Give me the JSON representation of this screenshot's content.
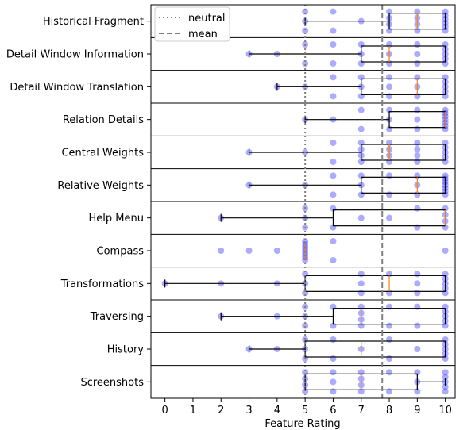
{
  "chart_data": {
    "type": "box",
    "xlabel": "Feature Rating",
    "xlim": [
      -0.5,
      10.35
    ],
    "xticks": [
      0,
      1,
      2,
      3,
      4,
      5,
      6,
      7,
      8,
      9,
      10
    ],
    "neutral": 5,
    "mean": 7.75,
    "legend": {
      "position": "top-left",
      "entries": [
        {
          "label": "neutral",
          "style": "dotted"
        },
        {
          "label": "mean",
          "style": "dashed"
        }
      ]
    },
    "colors": {
      "points": "#0000ff",
      "median": "#ff7f0e",
      "box": "#000000",
      "neutral": "#808080",
      "mean": "#808080"
    },
    "categories": [
      {
        "name": "Historical Fragment",
        "box": {
          "wlo": 5,
          "q1": 8,
          "med": 9,
          "q3": 10,
          "whi": 10
        },
        "points": [
          [
            5,
            3
          ],
          [
            6,
            2
          ],
          [
            7,
            1
          ],
          [
            8,
            4
          ],
          [
            9,
            4
          ],
          [
            10,
            6
          ]
        ]
      },
      {
        "name": "Detail Window Information",
        "box": {
          "wlo": 3,
          "q1": 7,
          "med": 8,
          "q3": 10,
          "whi": 10
        },
        "points": [
          [
            3,
            1
          ],
          [
            4,
            1
          ],
          [
            5,
            2
          ],
          [
            6,
            2
          ],
          [
            7,
            3
          ],
          [
            8,
            3
          ],
          [
            9,
            3
          ],
          [
            10,
            5
          ]
        ]
      },
      {
        "name": "Detail Window Translation",
        "box": {
          "wlo": 4,
          "q1": 7,
          "med": 9,
          "q3": 10,
          "whi": 10
        },
        "points": [
          [
            4,
            1
          ],
          [
            5,
            1
          ],
          [
            6,
            2
          ],
          [
            7,
            3
          ],
          [
            8,
            3
          ],
          [
            9,
            3
          ],
          [
            10,
            5
          ]
        ]
      },
      {
        "name": "Relation Details",
        "box": {
          "wlo": 5,
          "q1": 8,
          "med": 10,
          "q3": 10,
          "whi": 10
        },
        "points": [
          [
            5,
            1
          ],
          [
            6,
            1
          ],
          [
            7,
            2
          ],
          [
            8,
            3
          ],
          [
            9,
            3
          ],
          [
            10,
            7
          ]
        ]
      },
      {
        "name": "Central Weights",
        "box": {
          "wlo": 3,
          "q1": 7,
          "med": 8,
          "q3": 10,
          "whi": 10
        },
        "points": [
          [
            3,
            1
          ],
          [
            5,
            1
          ],
          [
            6,
            2
          ],
          [
            7,
            4
          ],
          [
            8,
            4
          ],
          [
            9,
            4
          ],
          [
            10,
            5
          ]
        ]
      },
      {
        "name": "Relative Weights",
        "box": {
          "wlo": 3,
          "q1": 7,
          "med": 9,
          "q3": 10,
          "whi": 10
        },
        "points": [
          [
            3,
            1
          ],
          [
            5,
            1
          ],
          [
            6,
            2
          ],
          [
            7,
            3
          ],
          [
            8,
            2
          ],
          [
            9,
            3
          ],
          [
            10,
            7
          ]
        ]
      },
      {
        "name": "Help Menu",
        "box": {
          "wlo": 2,
          "q1": 6,
          "med": 10,
          "q3": 10,
          "whi": 10
        },
        "points": [
          [
            2,
            1
          ],
          [
            5,
            3
          ],
          [
            6,
            2
          ],
          [
            7,
            1
          ],
          [
            8,
            1
          ],
          [
            9,
            2
          ],
          [
            10,
            4
          ]
        ]
      },
      {
        "name": "Compass",
        "box": {
          "wlo": 5,
          "q1": 5,
          "med": 5,
          "q3": 5,
          "whi": 5
        },
        "points": [
          [
            2,
            1
          ],
          [
            3,
            1
          ],
          [
            4,
            1
          ],
          [
            5,
            7
          ],
          [
            6,
            2
          ],
          [
            10,
            1
          ]
        ]
      },
      {
        "name": "Transformations",
        "box": {
          "wlo": 0,
          "q1": 5,
          "med": 8,
          "q3": 10,
          "whi": 10
        },
        "points": [
          [
            0,
            1
          ],
          [
            2,
            1
          ],
          [
            4,
            1
          ],
          [
            5,
            3
          ],
          [
            7,
            3
          ],
          [
            8,
            2
          ],
          [
            9,
            3
          ],
          [
            10,
            5
          ]
        ]
      },
      {
        "name": "Traversing",
        "box": {
          "wlo": 2,
          "q1": 6,
          "med": 7,
          "q3": 10,
          "whi": 10
        },
        "points": [
          [
            2,
            1
          ],
          [
            4,
            1
          ],
          [
            5,
            3
          ],
          [
            6,
            2
          ],
          [
            7,
            4
          ],
          [
            8,
            2
          ],
          [
            9,
            2
          ],
          [
            10,
            5
          ]
        ]
      },
      {
        "name": "History",
        "box": {
          "wlo": 3,
          "q1": 5,
          "med": 7,
          "q3": 10,
          "whi": 10
        },
        "points": [
          [
            3,
            1
          ],
          [
            4,
            1
          ],
          [
            5,
            3
          ],
          [
            6,
            2
          ],
          [
            7,
            1
          ],
          [
            8,
            2
          ],
          [
            9,
            1
          ],
          [
            10,
            5
          ]
        ]
      },
      {
        "name": "Screenshots",
        "box": {
          "wlo": 5,
          "q1": 5,
          "med": 7,
          "q3": 9,
          "whi": 10
        },
        "points": [
          [
            5,
            4
          ],
          [
            6,
            3
          ],
          [
            7,
            4
          ],
          [
            8,
            2
          ],
          [
            9,
            3
          ],
          [
            10,
            5
          ]
        ]
      }
    ]
  }
}
